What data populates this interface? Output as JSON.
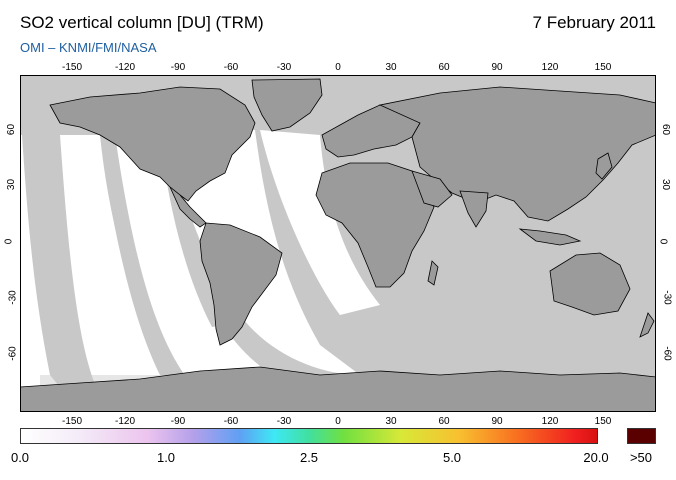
{
  "header": {
    "title": "SO2 vertical column [DU] (TRM)",
    "date": "7 February 2011",
    "subtitle": "OMI  –  KNMI/FMI/NASA"
  },
  "axes": {
    "longitude_ticks": [
      "-150",
      "-120",
      "-90",
      "-60",
      "-30",
      "0",
      "30",
      "60",
      "90",
      "120",
      "150"
    ],
    "latitude_ticks": [
      "60",
      "30",
      "0",
      "-30",
      "-60"
    ]
  },
  "colorbar": {
    "labels": [
      "0.0",
      "1.0",
      "2.5",
      "5.0",
      "20.0"
    ],
    "overflow_label": ">50",
    "overflow_color": "#5a0000"
  },
  "colors": {
    "land": "#9b9b9b",
    "ocean_nodata": "#c8c8c8",
    "measured_background": "#ffffff"
  }
}
